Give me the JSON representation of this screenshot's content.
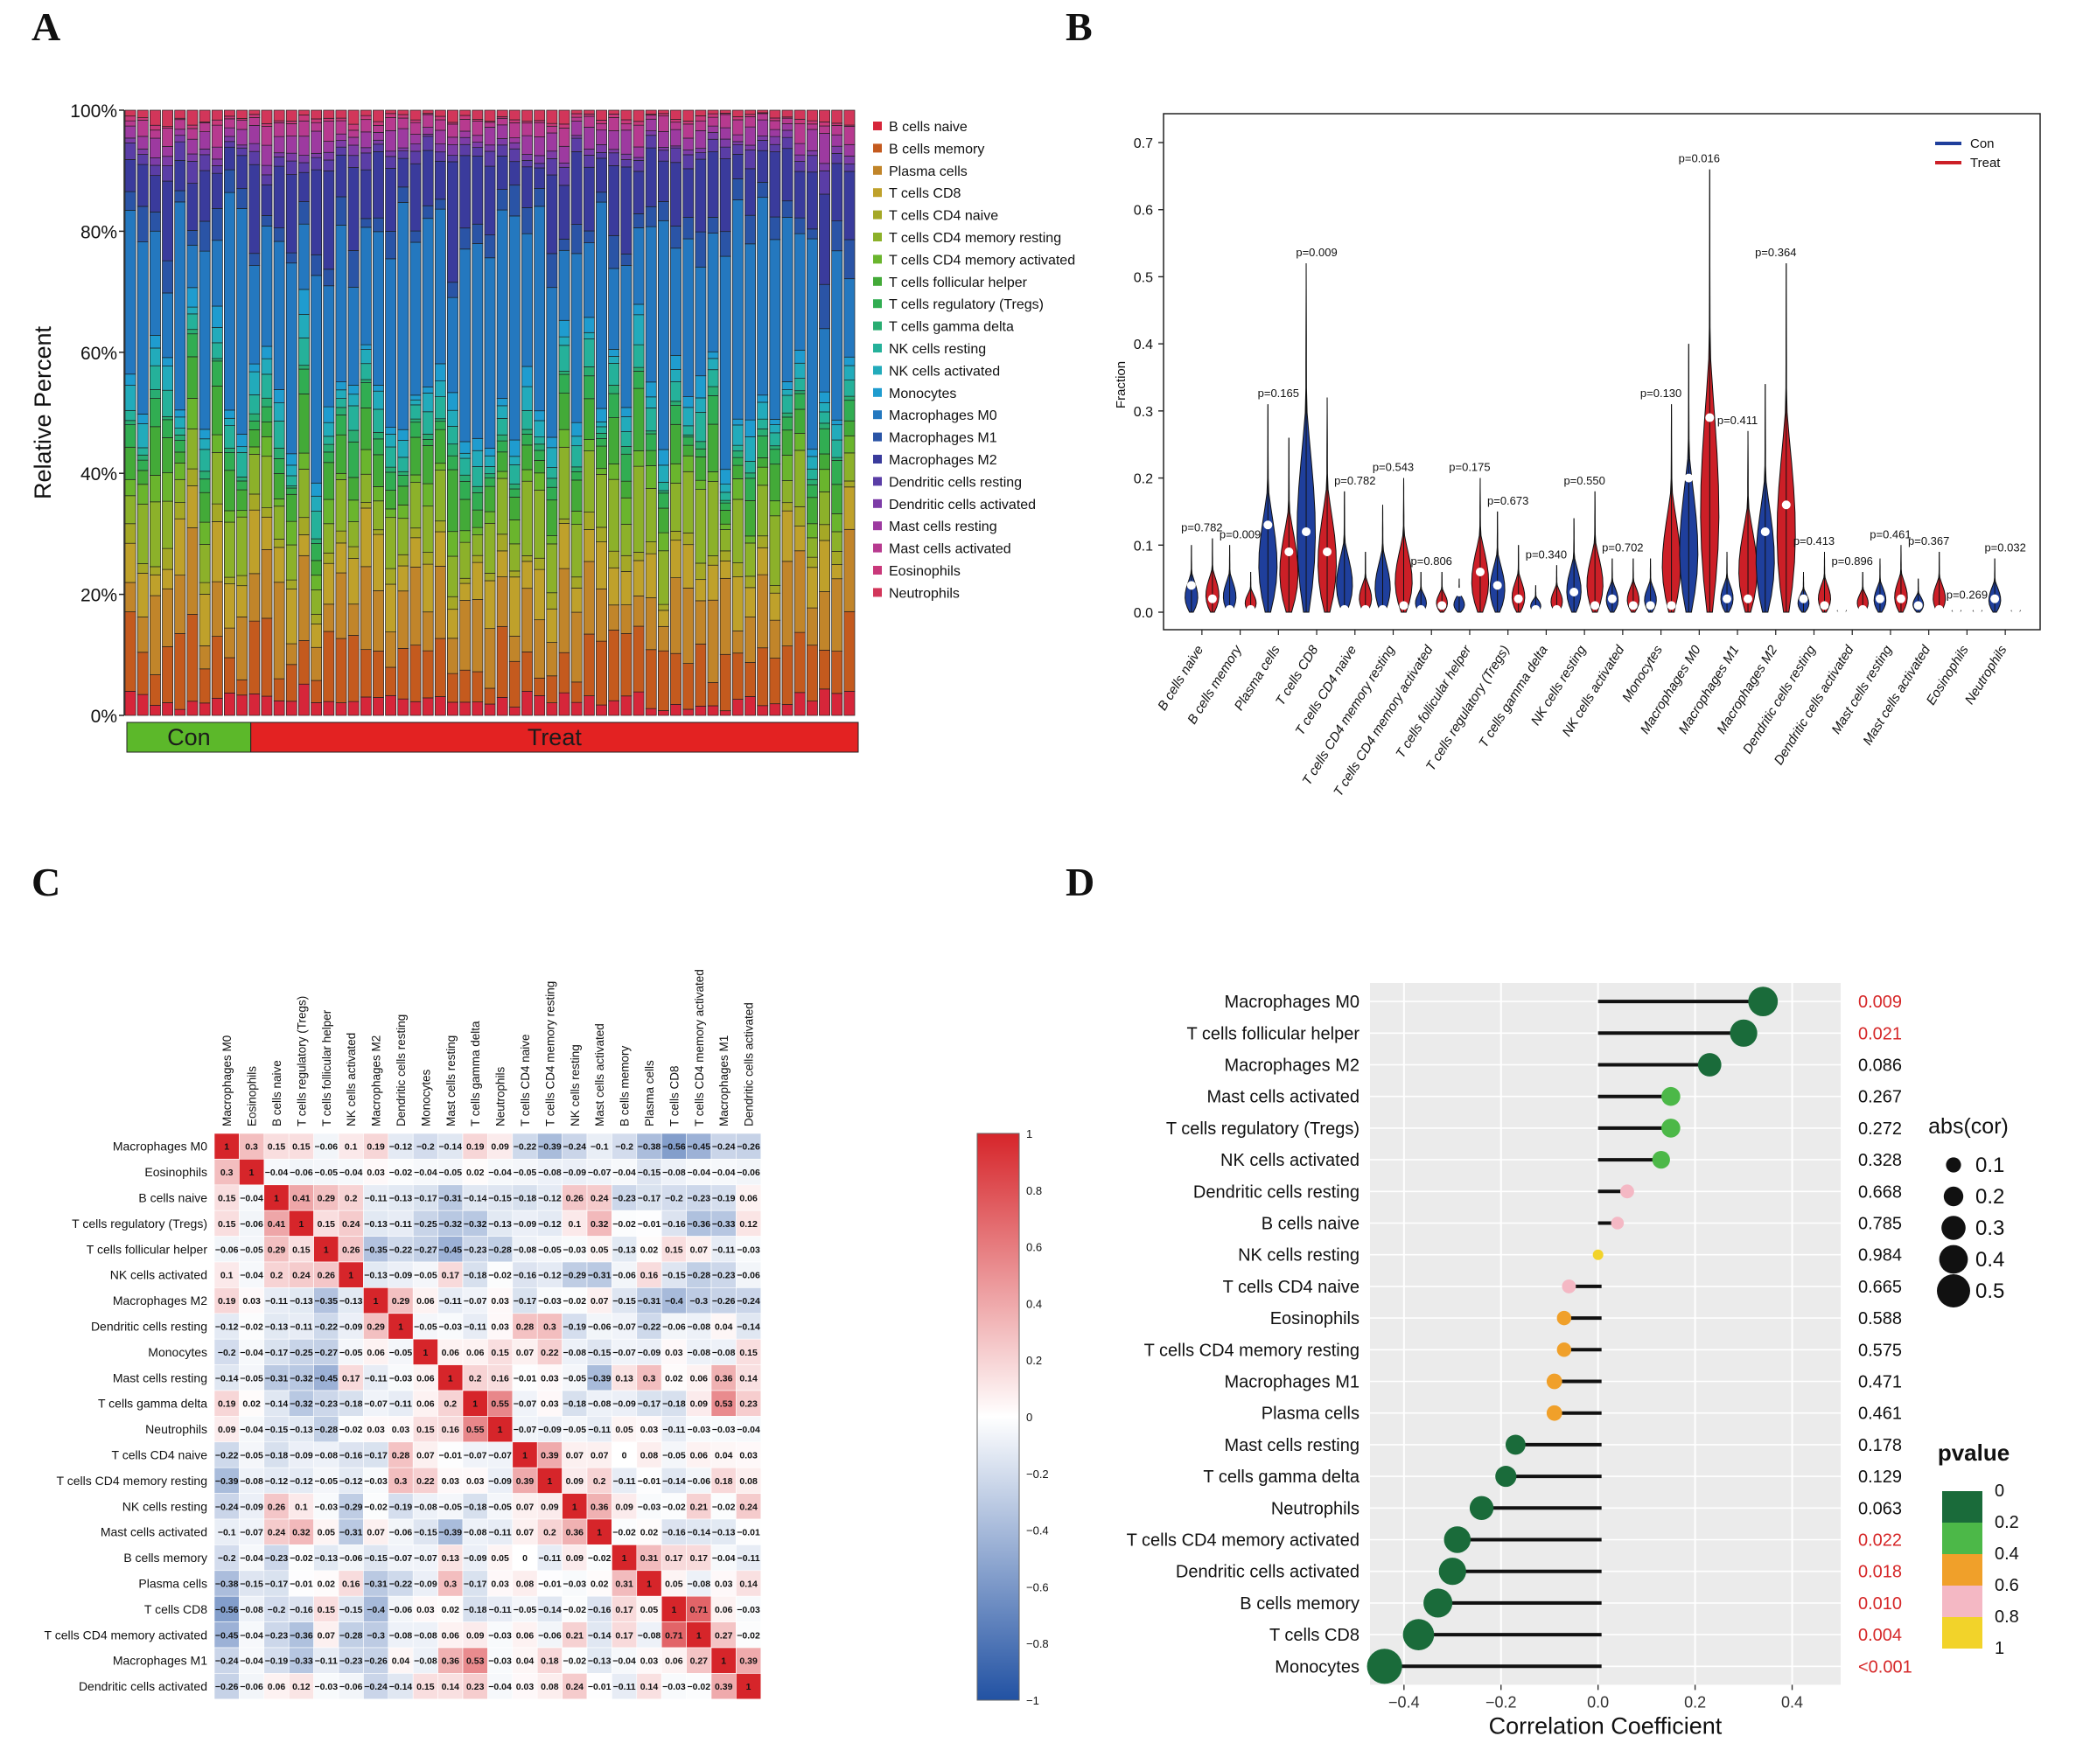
{
  "figure": {
    "panel_labels": [
      "A",
      "B",
      "C",
      "D"
    ]
  },
  "chart_data": [
    {
      "panel": "A",
      "type": "bar",
      "stacked": true,
      "ylabel": "Relative Percent",
      "yticks": [
        "0%",
        "20%",
        "40%",
        "60%",
        "80%",
        "100%"
      ],
      "ylim": [
        0,
        100
      ],
      "n_samples": 59,
      "n_con": 10,
      "groups": [
        {
          "name": "Con",
          "color": "#5cb82a",
          "count": 10
        },
        {
          "name": "Treat",
          "color": "#e32222",
          "count": 49
        }
      ],
      "series": [
        {
          "name": "B cells naive",
          "color": "#d6263a"
        },
        {
          "name": "B cells memory",
          "color": "#c45a1e"
        },
        {
          "name": "Plasma cells",
          "color": "#c1852a"
        },
        {
          "name": "T cells CD8",
          "color": "#bfa12b"
        },
        {
          "name": "T cells CD4 naive",
          "color": "#a5a826"
        },
        {
          "name": "T cells CD4 memory resting",
          "color": "#8cb12a"
        },
        {
          "name": "T cells CD4 memory activated",
          "color": "#6ab52d"
        },
        {
          "name": "T cells follicular helper",
          "color": "#43aa38"
        },
        {
          "name": "T cells regulatory (Tregs)",
          "color": "#31ad52"
        },
        {
          "name": "T cells gamma delta",
          "color": "#29ad72"
        },
        {
          "name": "NK cells resting",
          "color": "#25b19a"
        },
        {
          "name": "NK cells activated",
          "color": "#22abbb"
        },
        {
          "name": "Monocytes",
          "color": "#1f9ccf"
        },
        {
          "name": "Macrophages M0",
          "color": "#2478bf"
        },
        {
          "name": "Macrophages M1",
          "color": "#2a54a6"
        },
        {
          "name": "Macrophages M2",
          "color": "#3a3b9c"
        },
        {
          "name": "Dendritic cells resting",
          "color": "#5a3da6"
        },
        {
          "name": "Dendritic cells activated",
          "color": "#7d3ca7"
        },
        {
          "name": "Mast cells resting",
          "color": "#9d3aa0"
        },
        {
          "name": "Mast cells activated",
          "color": "#b73a8f"
        },
        {
          "name": "Eosinophils",
          "color": "#c9387a"
        },
        {
          "name": "Neutrophils",
          "color": "#d2365a"
        }
      ]
    },
    {
      "panel": "B",
      "type": "violin",
      "ylabel": "Fraction",
      "ylim": [
        0,
        0.7
      ],
      "yticks": [
        0.0,
        0.1,
        0.2,
        0.3,
        0.4,
        0.5,
        0.6,
        0.7
      ],
      "ytick_labels": [
        "0.0",
        "0.1",
        "0.2",
        "0.3",
        "0.4",
        "0.5",
        "0.6",
        "0.7"
      ],
      "legend": [
        {
          "name": "Con",
          "color": "#1f3f9c"
        },
        {
          "name": "Treat",
          "color": "#cc1f27"
        }
      ],
      "legend_position": "top-right",
      "categories": [
        "B cells naive",
        "B cells memory",
        "Plasma cells",
        "T cells CD8",
        "T cells CD4 naive",
        "T cells CD4 memory resting",
        "T cells CD4 memory activated",
        "T cells follicular helper",
        "T cells regulatory (Tregs)",
        "T cells gamma delta",
        "NK cells resting",
        "NK cells activated",
        "Monocytes",
        "Macrophages M0",
        "Macrophages M1",
        "Macrophages M2",
        "Dendritic cells resting",
        "Dendritic cells activated",
        "Mast cells resting",
        "Mast cells activated",
        "Eosinophils",
        "Neutrophils"
      ],
      "p_labels": [
        "p=0.782",
        "p=0.009",
        "p=0.165",
        "p=0.009",
        "p=0.782",
        "p=0.543",
        "p=0.806",
        "p=0.175",
        "p=0.673",
        "p=0.340",
        "p=0.550",
        "p=0.702",
        "p=0.130",
        "p=0.016",
        "p=0.411",
        "p=0.364",
        "p=0.413",
        "p=0.896",
        "p=0.461",
        "p=0.367",
        "p=0.269",
        "p=0.032"
      ],
      "con": {
        "max": [
          0.1,
          0.1,
          0.31,
          0.52,
          0.18,
          0.16,
          0.06,
          0.05,
          0.15,
          0.04,
          0.14,
          0.08,
          0.08,
          0.4,
          0.09,
          0.34,
          0.06,
          0.01,
          0.08,
          0.05,
          0.01,
          0.08
        ],
        "median": [
          0.04,
          0.0,
          0.13,
          0.12,
          0.0,
          0.0,
          0.0,
          0.03,
          0.04,
          0.0,
          0.03,
          0.02,
          0.01,
          0.2,
          0.02,
          0.12,
          0.02,
          0.0,
          0.02,
          0.01,
          0.0,
          0.02
        ]
      },
      "treat": {
        "max": [
          0.11,
          0.06,
          0.26,
          0.32,
          0.09,
          0.2,
          0.06,
          0.2,
          0.1,
          0.07,
          0.18,
          0.08,
          0.31,
          0.66,
          0.27,
          0.52,
          0.09,
          0.06,
          0.1,
          0.09,
          0.01,
          0.01
        ],
        "median": [
          0.02,
          0.0,
          0.09,
          0.09,
          0.0,
          0.01,
          0.01,
          0.06,
          0.02,
          0.0,
          0.01,
          0.01,
          0.01,
          0.29,
          0.02,
          0.16,
          0.01,
          0.0,
          0.02,
          0.0,
          0.0,
          0.0
        ]
      }
    },
    {
      "panel": "C",
      "type": "heatmap",
      "colorbar_ticks": [
        "1",
        "0.8",
        "0.6",
        "0.4",
        "0.2",
        "0",
        "−0.2",
        "−0.4",
        "−0.6",
        "−0.8",
        "−1"
      ],
      "labels": [
        "Macrophages M0",
        "Eosinophils",
        "B cells naive",
        "T cells regulatory (Tregs)",
        "T cells follicular helper",
        "NK cells activated",
        "Macrophages M2",
        "Dendritic cells resting",
        "Monocytes",
        "Mast cells resting",
        "T cells gamma delta",
        "Neutrophils",
        "T cells CD4 naive",
        "T cells CD4 memory resting",
        "NK cells resting",
        "Mast cells activated",
        "B cells memory",
        "Plasma cells",
        "T cells CD8",
        "T cells CD4 memory activated",
        "Macrophages M1",
        "Dendritic cells activated"
      ],
      "matrix": [
        [
          1,
          0.3,
          0.15,
          0.15,
          -0.06,
          0.1,
          0.19,
          -0.12,
          -0.2,
          -0.14,
          0.19,
          0.09,
          -0.22,
          -0.39,
          -0.24,
          -0.1,
          -0.2,
          -0.38,
          -0.56,
          -0.45,
          -0.24,
          -0.26
        ],
        [
          0.3,
          1,
          -0.04,
          -0.06,
          -0.05,
          -0.04,
          0.03,
          -0.02,
          -0.04,
          -0.05,
          0.02,
          -0.04,
          -0.05,
          -0.08,
          -0.09,
          -0.07,
          -0.04,
          -0.15,
          -0.08,
          -0.04,
          -0.04,
          -0.06
        ],
        [
          0.15,
          -0.04,
          1,
          0.41,
          0.29,
          0.2,
          -0.11,
          -0.13,
          -0.17,
          -0.31,
          -0.14,
          -0.15,
          -0.18,
          -0.12,
          0.26,
          0.24,
          -0.23,
          -0.17,
          -0.2,
          -0.23,
          -0.19,
          0.06
        ],
        [
          0.15,
          -0.06,
          0.41,
          1,
          0.15,
          0.24,
          -0.13,
          -0.11,
          -0.25,
          -0.32,
          -0.32,
          -0.13,
          -0.09,
          -0.12,
          0.1,
          0.32,
          -0.02,
          -0.01,
          -0.16,
          -0.36,
          -0.33,
          0.12
        ],
        [
          -0.06,
          -0.05,
          0.29,
          0.15,
          1,
          0.26,
          -0.35,
          -0.22,
          -0.27,
          -0.45,
          -0.23,
          -0.28,
          -0.08,
          -0.05,
          -0.03,
          0.05,
          -0.13,
          0.02,
          0.15,
          0.07,
          -0.11,
          -0.03
        ],
        [
          0.1,
          -0.04,
          0.2,
          0.24,
          0.26,
          1,
          -0.13,
          -0.09,
          -0.05,
          0.17,
          -0.18,
          -0.02,
          -0.16,
          -0.12,
          -0.29,
          -0.31,
          -0.06,
          0.16,
          -0.15,
          -0.28,
          -0.23,
          -0.06
        ],
        [
          0.19,
          0.03,
          -0.11,
          -0.13,
          -0.35,
          -0.13,
          1,
          0.29,
          0.06,
          -0.11,
          -0.07,
          0.03,
          -0.17,
          -0.03,
          -0.02,
          0.07,
          -0.15,
          -0.31,
          -0.4,
          -0.3,
          -0.26,
          -0.24
        ],
        [
          -0.12,
          -0.02,
          -0.13,
          -0.11,
          -0.22,
          -0.09,
          0.29,
          1,
          -0.05,
          -0.03,
          -0.11,
          0.03,
          0.28,
          0.3,
          -0.19,
          -0.06,
          -0.07,
          -0.22,
          -0.06,
          -0.08,
          0.04,
          -0.14
        ],
        [
          -0.2,
          -0.04,
          -0.17,
          -0.25,
          -0.27,
          -0.05,
          0.06,
          -0.05,
          1,
          0.06,
          0.06,
          0.15,
          0.07,
          0.22,
          -0.08,
          -0.15,
          -0.07,
          -0.09,
          0.03,
          -0.08,
          -0.08,
          0.15
        ],
        [
          -0.14,
          -0.05,
          -0.31,
          -0.32,
          -0.45,
          0.17,
          -0.11,
          -0.03,
          0.06,
          1,
          0.2,
          0.16,
          -0.01,
          0.03,
          -0.05,
          -0.39,
          0.13,
          0.3,
          0.02,
          0.06,
          0.36,
          0.14
        ],
        [
          0.19,
          0.02,
          -0.14,
          -0.32,
          -0.23,
          -0.18,
          -0.07,
          -0.11,
          0.06,
          0.2,
          1,
          0.55,
          -0.07,
          0.03,
          -0.18,
          -0.08,
          -0.09,
          -0.17,
          -0.18,
          0.09,
          0.53,
          0.23
        ],
        [
          0.09,
          -0.04,
          -0.15,
          -0.13,
          -0.28,
          -0.02,
          0.03,
          0.03,
          0.15,
          0.16,
          0.55,
          1,
          -0.07,
          -0.09,
          -0.05,
          -0.11,
          0.05,
          0.03,
          -0.11,
          -0.03,
          -0.03,
          -0.04
        ],
        [
          -0.22,
          -0.05,
          -0.18,
          -0.09,
          -0.08,
          -0.16,
          -0.17,
          0.28,
          0.07,
          -0.01,
          -0.07,
          -0.07,
          1,
          0.39,
          0.07,
          0.07,
          0,
          0.08,
          -0.05,
          0.06,
          0.04,
          0.03
        ],
        [
          -0.39,
          -0.08,
          -0.12,
          -0.12,
          -0.05,
          -0.12,
          -0.03,
          0.3,
          0.22,
          0.03,
          0.03,
          -0.09,
          0.39,
          1,
          0.09,
          0.2,
          -0.11,
          -0.01,
          -0.14,
          -0.06,
          0.18,
          0.08
        ],
        [
          -0.24,
          -0.09,
          0.26,
          0.1,
          -0.03,
          -0.29,
          -0.02,
          -0.19,
          -0.08,
          -0.05,
          -0.18,
          -0.05,
          0.07,
          0.09,
          1,
          0.36,
          0.09,
          -0.03,
          -0.02,
          0.21,
          -0.02,
          0.24
        ],
        [
          -0.1,
          -0.07,
          0.24,
          0.32,
          0.05,
          -0.31,
          0.07,
          -0.06,
          -0.15,
          -0.39,
          -0.08,
          -0.11,
          0.07,
          0.2,
          0.36,
          1,
          -0.02,
          0.02,
          -0.16,
          -0.14,
          -0.13,
          -0.01
        ],
        [
          -0.2,
          -0.04,
          -0.23,
          -0.02,
          -0.13,
          -0.06,
          -0.15,
          -0.07,
          -0.07,
          0.13,
          -0.09,
          0.05,
          0,
          -0.11,
          0.09,
          -0.02,
          1,
          0.31,
          0.17,
          0.17,
          -0.04,
          -0.11
        ],
        [
          -0.38,
          -0.15,
          -0.17,
          -0.01,
          0.02,
          0.16,
          -0.31,
          -0.22,
          -0.09,
          0.3,
          -0.17,
          0.03,
          0.08,
          -0.01,
          -0.03,
          0.02,
          0.31,
          1,
          0.05,
          -0.08,
          0.03,
          0.14
        ],
        [
          -0.56,
          -0.08,
          -0.2,
          -0.16,
          0.15,
          -0.15,
          -0.4,
          -0.06,
          0.03,
          0.02,
          -0.18,
          -0.11,
          -0.05,
          -0.14,
          -0.02,
          -0.16,
          0.17,
          0.05,
          1,
          0.71,
          0.06,
          -0.03
        ],
        [
          -0.45,
          -0.04,
          -0.23,
          -0.36,
          0.07,
          -0.28,
          -0.3,
          -0.08,
          -0.08,
          0.06,
          0.09,
          -0.03,
          0.06,
          -0.06,
          0.21,
          -0.14,
          0.17,
          -0.08,
          0.71,
          1,
          0.27,
          -0.02
        ],
        [
          -0.24,
          -0.04,
          -0.19,
          -0.33,
          -0.11,
          -0.23,
          -0.26,
          0.04,
          -0.08,
          0.36,
          0.53,
          -0.03,
          0.04,
          0.18,
          -0.02,
          -0.13,
          -0.04,
          0.03,
          0.06,
          0.27,
          1,
          0.39
        ],
        [
          -0.26,
          -0.06,
          0.06,
          0.12,
          -0.03,
          -0.06,
          -0.24,
          -0.14,
          0.15,
          0.14,
          0.23,
          -0.04,
          0.03,
          0.08,
          0.24,
          -0.01,
          -0.11,
          0.14,
          -0.03,
          -0.02,
          0.39,
          1
        ]
      ]
    },
    {
      "panel": "D",
      "type": "lollipop",
      "xlabel": "Correlation Coefficient",
      "xlim": [
        -0.47,
        0.5
      ],
      "xticks": [
        -0.4,
        -0.2,
        0.0,
        0.2,
        0.4
      ],
      "xtick_labels": [
        "−0.4",
        "−0.2",
        "0.0",
        "0.2",
        "0.4"
      ],
      "legend_size_title": "abs(cor)",
      "legend_size_values": [
        "0.1",
        "0.2",
        "0.3",
        "0.4",
        "0.5"
      ],
      "legend_color_title": "pvalue",
      "legend_color_ticks": [
        "0",
        "0.2",
        "0.4",
        "0.6",
        "0.8",
        "1"
      ],
      "pvalue_colors": [
        "#1a6b3a",
        "#4cb848",
        "#f0a02a",
        "#f4b8c4",
        "#f2d32a"
      ],
      "significant_color": "#d62728",
      "rows": [
        {
          "label": "Macrophages M0",
          "cor": 0.34,
          "p": "0.009",
          "color": "#1a6b3a",
          "sig": true
        },
        {
          "label": "T cells follicular helper",
          "cor": 0.3,
          "p": "0.021",
          "color": "#1a6b3a",
          "sig": true
        },
        {
          "label": "Macrophages M2",
          "cor": 0.23,
          "p": "0.086",
          "color": "#1a6b3a",
          "sig": false
        },
        {
          "label": "Mast cells activated",
          "cor": 0.15,
          "p": "0.267",
          "color": "#4cb848",
          "sig": false
        },
        {
          "label": "T cells regulatory (Tregs)",
          "cor": 0.15,
          "p": "0.272",
          "color": "#4cb848",
          "sig": false
        },
        {
          "label": "NK cells activated",
          "cor": 0.13,
          "p": "0.328",
          "color": "#4cb848",
          "sig": false
        },
        {
          "label": "Dendritic cells resting",
          "cor": 0.06,
          "p": "0.668",
          "color": "#f4b8c4",
          "sig": false
        },
        {
          "label": "B cells naive",
          "cor": 0.04,
          "p": "0.785",
          "color": "#f4b8c4",
          "sig": false
        },
        {
          "label": "NK cells resting",
          "cor": 0.0,
          "p": "0.984",
          "color": "#f2d32a",
          "sig": false
        },
        {
          "label": "T cells CD4 naive",
          "cor": -0.06,
          "p": "0.665",
          "color": "#f4b8c4",
          "sig": false
        },
        {
          "label": "Eosinophils",
          "cor": -0.07,
          "p": "0.588",
          "color": "#f0a02a",
          "sig": false
        },
        {
          "label": "T cells CD4 memory resting",
          "cor": -0.07,
          "p": "0.575",
          "color": "#f0a02a",
          "sig": false
        },
        {
          "label": "Macrophages M1",
          "cor": -0.09,
          "p": "0.471",
          "color": "#f0a02a",
          "sig": false
        },
        {
          "label": "Plasma cells",
          "cor": -0.09,
          "p": "0.461",
          "color": "#f0a02a",
          "sig": false
        },
        {
          "label": "Mast cells resting",
          "cor": -0.17,
          "p": "0.178",
          "color": "#1a6b3a",
          "sig": false
        },
        {
          "label": "T cells gamma delta",
          "cor": -0.19,
          "p": "0.129",
          "color": "#1a6b3a",
          "sig": false
        },
        {
          "label": "Neutrophils",
          "cor": -0.24,
          "p": "0.063",
          "color": "#1a6b3a",
          "sig": false
        },
        {
          "label": "T cells CD4 memory activated",
          "cor": -0.29,
          "p": "0.022",
          "color": "#1a6b3a",
          "sig": true
        },
        {
          "label": "Dendritic cells activated",
          "cor": -0.3,
          "p": "0.018",
          "color": "#1a6b3a",
          "sig": true
        },
        {
          "label": "B cells memory",
          "cor": -0.33,
          "p": "0.010",
          "color": "#1a6b3a",
          "sig": true
        },
        {
          "label": "T cells CD8",
          "cor": -0.37,
          "p": "0.004",
          "color": "#1a6b3a",
          "sig": true
        },
        {
          "label": "Monocytes",
          "cor": -0.44,
          "p": "<0.001",
          "color": "#1a6b3a",
          "sig": true
        }
      ]
    }
  ]
}
